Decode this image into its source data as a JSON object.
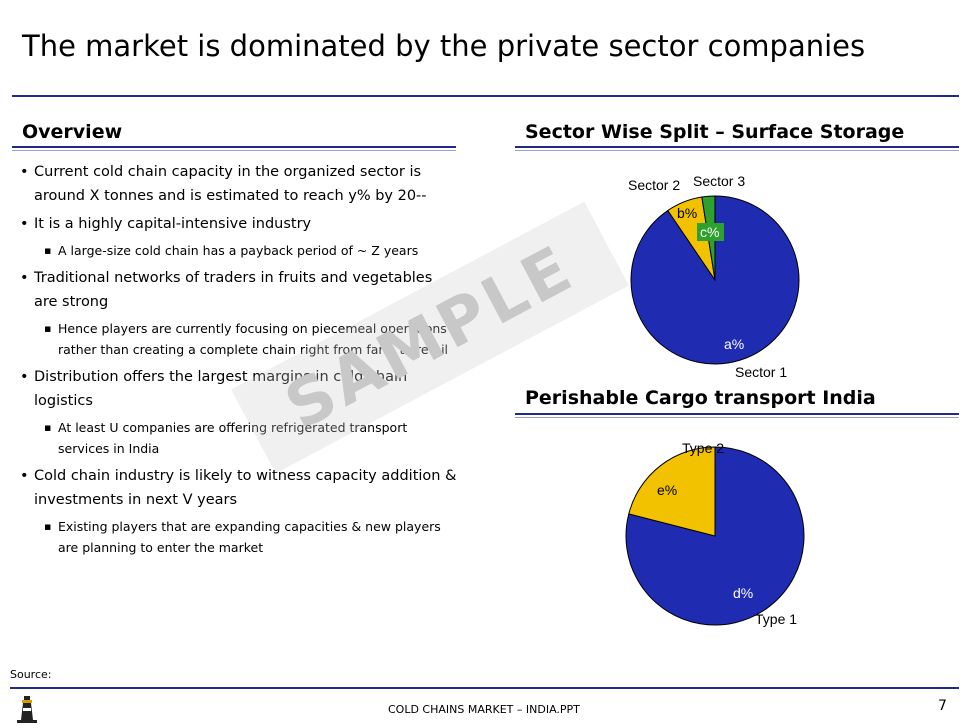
{
  "slide": {
    "title": "The market is dominated by the private sector companies",
    "source_label": "Source:",
    "footer": "COLD CHAINS MARKET – INDIA.PPT",
    "page_number": "7",
    "watermark": "SAMPLE"
  },
  "overview": {
    "heading": "Overview",
    "bullets": [
      {
        "text": "Current cold chain capacity in the organized sector is around X tonnes and is estimated to reach y% by 20--",
        "subs": []
      },
      {
        "text": "It is a highly capital-intensive industry",
        "subs": [
          "A large-size cold chain has a payback period of ~ Z years"
        ]
      },
      {
        "text": "Traditional networks of traders in fruits and vegetables are strong",
        "subs": [
          "Hence players are currently focusing on piecemeal operations rather than creating a complete chain right from farm to retail"
        ]
      },
      {
        "text": "Distribution offers the largest margins in cold chain logistics",
        "subs": [
          "At least U companies are offering refrigerated transport services in India"
        ]
      },
      {
        "text": "Cold chain industry is likely to witness capacity addition & investments in next V years",
        "subs": [
          "Existing players that are expanding capacities & new players are planning to enter the market"
        ]
      }
    ]
  },
  "chart_data": [
    {
      "type": "pie",
      "title": "Sector Wise Split – Surface Storage",
      "slices": [
        {
          "label": "Sector 1",
          "value_label": "a%",
          "share": 0.905,
          "color": "#1f2bb0"
        },
        {
          "label": "Sector 2",
          "value_label": "b%",
          "share": 0.07,
          "color": "#f2c200"
        },
        {
          "label": "Sector 3",
          "value_label": "c%",
          "share": 0.025,
          "color": "#2ea02e"
        }
      ]
    },
    {
      "type": "pie",
      "title": "Perishable Cargo transport India",
      "slices": [
        {
          "label": "Type 1",
          "value_label": "d%",
          "share": 0.79,
          "color": "#1f2bb0"
        },
        {
          "label": "Type 2",
          "value_label": "e%",
          "share": 0.21,
          "color": "#f2c200"
        }
      ]
    }
  ]
}
